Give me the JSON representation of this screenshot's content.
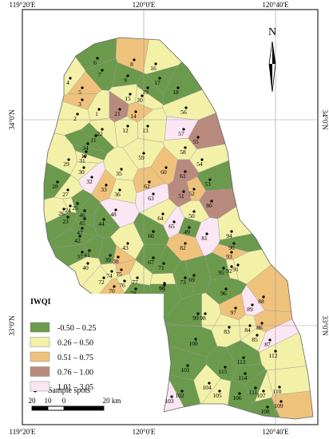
{
  "title": "IWQI",
  "legend": [
    {
      "label": "-0.50 – 0.25",
      "color": "#6b9a4c"
    },
    {
      "label": "0.26 – 0.50",
      "color": "#f3f0a8"
    },
    {
      "label": "0.51 – 0.75",
      "color": "#efc27c"
    },
    {
      "label": "0.76 – 1.00",
      "color": "#b88a7e"
    },
    {
      "label": "1.01 – 3.05",
      "color": "#fbe6f3"
    }
  ],
  "sample_legend": "Sample spots",
  "north": "N",
  "longitudes": [
    "119°20'E",
    "120°0'E",
    "120°40'E"
  ],
  "latitudes": [
    "34°0'N",
    "33°0'N"
  ],
  "scale_labels": [
    "20",
    "10",
    "0",
    "20 km"
  ],
  "samples": [
    {
      "label": "1",
      "class": 1
    },
    {
      "label": "2",
      "class": 1
    },
    {
      "label": "3",
      "class": 2
    },
    {
      "label": "4",
      "class": 1
    },
    {
      "label": "5",
      "class": 2
    },
    {
      "label": "6",
      "class": 0
    },
    {
      "label": "7",
      "class": 0
    },
    {
      "label": "8",
      "class": 2
    },
    {
      "label": "9",
      "class": 0
    },
    {
      "label": "10",
      "class": 0
    },
    {
      "label": "11",
      "class": 0
    },
    {
      "label": "12",
      "class": 1
    },
    {
      "label": "13",
      "class": 1
    },
    {
      "label": "14",
      "class": 2
    },
    {
      "label": "15",
      "class": 1
    },
    {
      "label": "16",
      "class": 1
    },
    {
      "label": "17",
      "class": 0
    },
    {
      "label": "18",
      "class": 0
    },
    {
      "label": "19",
      "class": 0
    },
    {
      "label": "20",
      "class": 1
    },
    {
      "label": "21",
      "class": 3
    },
    {
      "label": "22",
      "class": 1
    },
    {
      "label": "23",
      "class": 0
    },
    {
      "label": "24",
      "class": 1
    },
    {
      "label": "25",
      "class": 0
    },
    {
      "label": "26",
      "class": 1
    },
    {
      "label": "27",
      "class": 1
    },
    {
      "label": "28",
      "class": 0
    },
    {
      "label": "29",
      "class": 1
    },
    {
      "label": "30",
      "class": 1
    },
    {
      "label": "31",
      "class": 1
    },
    {
      "label": "32",
      "class": 4
    },
    {
      "label": "33",
      "class": 2
    },
    {
      "label": "34",
      "class": 0
    },
    {
      "label": "35",
      "class": 1
    },
    {
      "label": "36",
      "class": 1
    },
    {
      "label": "37",
      "class": 0
    },
    {
      "label": "38",
      "class": 2
    },
    {
      "label": "39",
      "class": 0
    },
    {
      "label": "40",
      "class": 1
    },
    {
      "label": "41",
      "class": 0
    },
    {
      "label": "42",
      "class": 0
    },
    {
      "label": "43",
      "class": 1
    },
    {
      "label": "44",
      "class": 0
    },
    {
      "label": "45",
      "class": 0
    },
    {
      "label": "46",
      "class": 0
    },
    {
      "label": "47",
      "class": 0
    },
    {
      "label": "48",
      "class": 4
    },
    {
      "label": "49",
      "class": 0
    },
    {
      "label": "50",
      "class": 1
    },
    {
      "label": "51",
      "class": 3
    },
    {
      "label": "52",
      "class": 2
    },
    {
      "label": "53",
      "class": 0
    },
    {
      "label": "54",
      "class": 1
    },
    {
      "label": "55",
      "class": 3
    },
    {
      "label": "56",
      "class": 1
    },
    {
      "label": "57",
      "class": 4
    },
    {
      "label": "58",
      "class": 1
    },
    {
      "label": "59",
      "class": 1
    },
    {
      "label": "60",
      "class": 2
    },
    {
      "label": "61",
      "class": 3
    },
    {
      "label": "62",
      "class": 2
    },
    {
      "label": "63",
      "class": 4
    },
    {
      "label": "64",
      "class": 1
    },
    {
      "label": "65",
      "class": 4
    },
    {
      "label": "66",
      "class": 0
    },
    {
      "label": "67",
      "class": 0
    },
    {
      "label": "68",
      "class": 1
    },
    {
      "label": "69",
      "class": 0
    },
    {
      "label": "70",
      "class": 2
    },
    {
      "label": "71",
      "class": 0
    },
    {
      "label": "72",
      "class": 1
    },
    {
      "label": "73",
      "class": 0
    },
    {
      "label": "74",
      "class": 1
    },
    {
      "label": "75",
      "class": 2
    },
    {
      "label": "76",
      "class": 1
    },
    {
      "label": "77",
      "class": 1
    },
    {
      "label": "78",
      "class": 0
    },
    {
      "label": "79",
      "class": 0
    },
    {
      "label": "80",
      "class": 3
    },
    {
      "label": "81",
      "class": 4
    },
    {
      "label": "82",
      "class": 2
    },
    {
      "label": "83",
      "class": 1
    },
    {
      "label": "84",
      "class": 1
    },
    {
      "label": "85",
      "class": 1
    },
    {
      "label": "86",
      "class": 2
    },
    {
      "label": "87",
      "class": 4
    },
    {
      "label": "88",
      "class": 2
    },
    {
      "label": "89",
      "class": 4
    },
    {
      "label": "90",
      "class": 0
    },
    {
      "label": "91",
      "class": 1
    },
    {
      "label": "92",
      "class": 1
    },
    {
      "label": "93",
      "class": 2
    },
    {
      "label": "94",
      "class": 1
    },
    {
      "label": "95",
      "class": 0
    },
    {
      "label": "96",
      "class": 0
    },
    {
      "label": "97",
      "class": 2
    },
    {
      "label": "98",
      "class": 1
    },
    {
      "label": "99",
      "class": 0
    },
    {
      "label": "100",
      "class": 0
    },
    {
      "label": "101",
      "class": 0
    },
    {
      "label": "102",
      "class": 0
    },
    {
      "label": "103",
      "class": 4
    },
    {
      "label": "104",
      "class": 1
    },
    {
      "label": "105",
      "class": 1
    },
    {
      "label": "106",
      "class": 0
    },
    {
      "label": "107",
      "class": 1
    },
    {
      "label": "108",
      "class": 0
    },
    {
      "label": "109",
      "class": 2
    },
    {
      "label": "110",
      "class": 1
    },
    {
      "label": "111",
      "class": 0
    },
    {
      "label": "112",
      "class": 1
    },
    {
      "label": "113",
      "class": 0
    },
    {
      "label": "114",
      "class": 0
    },
    {
      "label": "115",
      "class": 0
    }
  ]
}
